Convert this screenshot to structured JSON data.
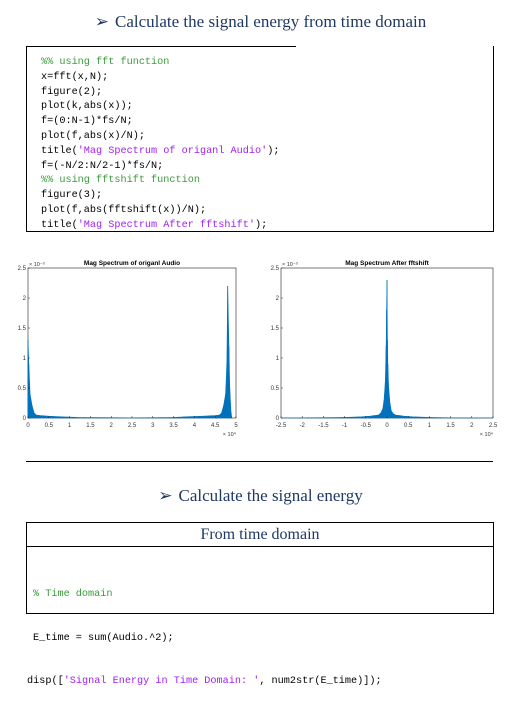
{
  "headings": {
    "first": "Calculate the signal energy from time domain",
    "second": "Calculate the signal energy",
    "arrow": "➢"
  },
  "code_block": {
    "lines": [
      {
        "text": "%% using fft function",
        "kind": "comment"
      },
      {
        "text": "x=fft(x,N);",
        "kind": "code"
      },
      {
        "text": "figure(2);",
        "kind": "code"
      },
      {
        "text": "plot(k,abs(x));",
        "kind": "code"
      },
      {
        "text": "f=(0:N-1)*fs/N;",
        "kind": "code"
      },
      {
        "text": "plot(f,abs(x)/N);",
        "kind": "code"
      },
      {
        "pre": "title(",
        "str": "'Mag Spectrum of origanl Audio'",
        "post": ");",
        "kind": "mixed"
      },
      {
        "text": "f=(-N/2:N/2-1)*fs/N;",
        "kind": "code"
      },
      {
        "text": "%% using fftshift function",
        "kind": "comment"
      },
      {
        "text": "figure(3);",
        "kind": "code"
      },
      {
        "text": "plot(f,abs(fftshift(x))/N);",
        "kind": "code"
      },
      {
        "pre": "title(",
        "str": "'Mag Spectrum After fftshift'",
        "post": ");",
        "kind": "mixed"
      }
    ]
  },
  "panel": {
    "title": "From time domain",
    "comment": "% Time domain",
    "line2": "E_time = sum(Audio.^2);",
    "line3_pre": "disp([",
    "line3_str": "'Signal Energy in Time Domain: '",
    "line3_post": ", num2str(E_time)]);"
  },
  "colors": {
    "heading": "#1f3864",
    "comment": "#3b9b3b",
    "string": "#a020f0",
    "spectrum_fill": "#0072bd"
  },
  "chart_data": [
    {
      "type": "area",
      "title": "Mag Spectrum of origanl Audio",
      "xlim": [
        0,
        50000
      ],
      "ylim": [
        0,
        0.0025
      ],
      "x_ticks": [
        "0",
        "0.5",
        "1",
        "1.5",
        "2",
        "2.5",
        "3",
        "3.5",
        "4",
        "4.5",
        "5"
      ],
      "y_ticks": [
        "0",
        "0.5",
        "1",
        "1.5",
        "2",
        "2.5"
      ],
      "x_exponent": "× 10⁴",
      "y_exponent": "× 10⁻³",
      "x": [
        0,
        200,
        500,
        1000,
        1500,
        2000,
        3000,
        5000,
        8000,
        12000,
        20000,
        25000,
        30000,
        35000,
        38000,
        42000,
        45000,
        46000,
        46500,
        47000,
        47500,
        47800,
        48000,
        48300,
        48500,
        48800,
        49000
      ],
      "y": [
        0.0013,
        0.0009,
        0.0004,
        0.0002,
        8e-05,
        5e-05,
        4e-05,
        3e-05,
        2e-05,
        1e-05,
        5e-06,
        4e-06,
        5e-06,
        1e-05,
        2e-05,
        3e-05,
        4e-05,
        5e-05,
        8e-05,
        0.0002,
        0.0004,
        0.0009,
        0.0022,
        0.0012,
        0.0005,
        0.0001,
        0.0
      ]
    },
    {
      "type": "area",
      "title": "Mag Spectrum After fftshift",
      "xlim": [
        -25000,
        25000
      ],
      "ylim": [
        0,
        0.0025
      ],
      "x_ticks": [
        "-2.5",
        "-2",
        "-1.5",
        "-1",
        "-0.5",
        "0",
        "0.5",
        "1",
        "1.5",
        "2",
        "2.5"
      ],
      "y_ticks": [
        "0",
        "0.5",
        "1",
        "1.5",
        "2",
        "2.5"
      ],
      "x_exponent": "× 10⁴",
      "y_exponent": "× 10⁻³",
      "x": [
        -25000,
        -20000,
        -15000,
        -10000,
        -6000,
        -4000,
        -3000,
        -2000,
        -1500,
        -1000,
        -700,
        -400,
        -200,
        -100,
        0,
        100,
        200,
        400,
        700,
        1000,
        1500,
        2000,
        3000,
        4000,
        6000,
        10000,
        15000,
        20000,
        25000
      ],
      "y": [
        0.0,
        3e-06,
        5e-06,
        1e-05,
        2e-05,
        3e-05,
        4e-05,
        5e-05,
        8e-05,
        0.00015,
        0.0003,
        0.0006,
        0.0012,
        0.0018,
        0.0023,
        0.0013,
        0.0009,
        0.0005,
        0.00025,
        0.00012,
        7e-05,
        5e-05,
        4e-05,
        3e-05,
        2e-05,
        1e-05,
        4e-06,
        2e-06,
        0.0
      ]
    }
  ]
}
